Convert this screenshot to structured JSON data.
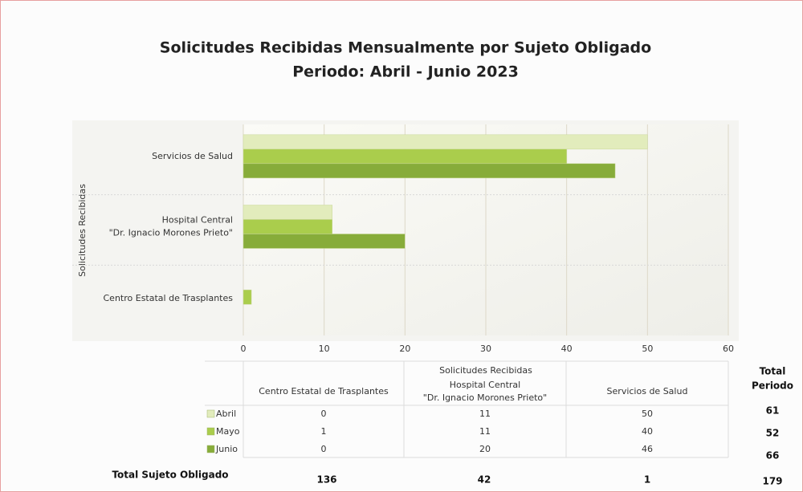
{
  "chart_data": {
    "type": "barh",
    "title": [
      "Solicitudes Recibidas Mensualmente por Sujeto Obligado",
      "Periodo: Abril - Junio 2023"
    ],
    "y_label": "Solicitudes Recibidas",
    "categories": [
      [
        "Servicios de Salud"
      ],
      [
        "Hospital Central",
        "\"Dr. Ignacio Morones Prieto\""
      ],
      [
        "Centro Estatal de Trasplantes"
      ]
    ],
    "series": [
      {
        "name": "Abril",
        "color": "#e2ecbc",
        "values": [
          50,
          11,
          0
        ]
      },
      {
        "name": "Mayo",
        "color": "#aacd4c",
        "values": [
          40,
          11,
          1
        ]
      },
      {
        "name": "Junio",
        "color": "#87ac3a",
        "values": [
          46,
          20,
          0
        ]
      }
    ],
    "xlim": [
      0,
      60
    ],
    "xticks": [
      0,
      10,
      20,
      30,
      40,
      50,
      60
    ],
    "grid": true,
    "table_order": [
      2,
      1,
      0
    ],
    "total_period_label": [
      "Total",
      "Periodo"
    ],
    "total_period": [
      61,
      52,
      66
    ],
    "total_subject_label": "Total Sujeto Obligado",
    "total_subject": [
      1,
      42,
      136
    ],
    "grand_total": 179
  }
}
